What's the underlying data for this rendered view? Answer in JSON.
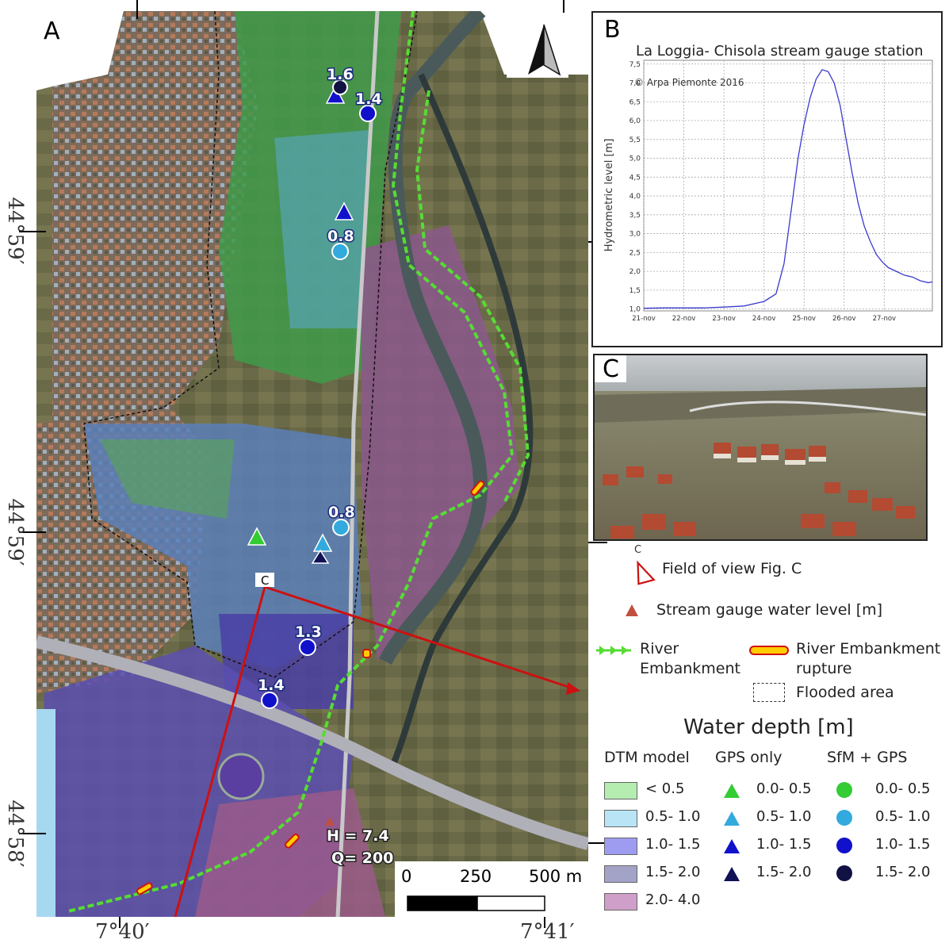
{
  "panel_a": {
    "letter": "A",
    "coords_left": [
      "44°59′",
      "44°59′",
      "44°58′"
    ],
    "coords_bottom": [
      "7°40′",
      "7°41′"
    ],
    "scale_labels": [
      "0",
      "250",
      "500 m"
    ],
    "point_labels": [
      "1.6",
      "1.4",
      "0.8",
      "0.8",
      "1.3",
      "1.4"
    ],
    "view_marker": "C",
    "gauge_h": "H = 7.4",
    "gauge_q": "Q= 200",
    "colors": {
      "river_embankment": "#55dd33",
      "rupture": "#ffcc00",
      "view_line": "#cc1111"
    }
  },
  "panel_b": {
    "letter": "B",
    "title": "La Loggia- Chisola stream gauge station",
    "copyright": "© Arpa Piemonte 2016",
    "ylabel": "Hydrometric level [m]"
  },
  "panel_c": {
    "letter": "C"
  },
  "chart_data": {
    "type": "line",
    "title": "La Loggia- Chisola stream gauge station",
    "ylabel": "Hydrometric level [m]",
    "xlabel": "",
    "x_ticks": [
      "21-nov",
      "22-nov",
      "23-nov",
      "24-nov",
      "25-nov",
      "26-nov",
      "27-nov"
    ],
    "y_ticks": [
      "1,0",
      "1,5",
      "2,0",
      "2,5",
      "3,0",
      "3,5",
      "4,0",
      "4,5",
      "5,0",
      "5,5",
      "6,0",
      "6,5",
      "7,0",
      "7,5"
    ],
    "ylim": [
      0.95,
      7.6
    ],
    "xlim": [
      0,
      7.2
    ],
    "grid": true,
    "series": [
      {
        "x": [
          0,
          0.5,
          1,
          1.5,
          2,
          2.5,
          3,
          3.3,
          3.5,
          3.7,
          3.85,
          4.0,
          4.15,
          4.3,
          4.45,
          4.6,
          4.75,
          4.9,
          5.05,
          5.2,
          5.35,
          5.5,
          5.65,
          5.8,
          5.95,
          6.1,
          6.3,
          6.5,
          6.7,
          6.9,
          7.1,
          7.2
        ],
        "y": [
          1.02,
          1.03,
          1.03,
          1.03,
          1.05,
          1.08,
          1.2,
          1.4,
          2.2,
          3.8,
          5.0,
          5.9,
          6.6,
          7.1,
          7.35,
          7.3,
          7.0,
          6.4,
          5.5,
          4.6,
          3.8,
          3.2,
          2.8,
          2.45,
          2.25,
          2.1,
          2.0,
          1.9,
          1.85,
          1.75,
          1.7,
          1.72
        ]
      }
    ]
  },
  "legend": {
    "field_of_view": "Field of view Fig. C",
    "field_marker": "C",
    "stream_gauge": "Stream gauge  water level [m]",
    "river_embankment": [
      "River",
      "Embankment"
    ],
    "rupture": [
      "River Embankment",
      "rupture"
    ],
    "flooded": "Flooded area",
    "water_depth_title": "Water depth [m]",
    "col_dtm": "DTM model",
    "col_gps": "GPS only",
    "col_sfm": "SfM + GPS",
    "dtm_rows": [
      {
        "label": "< 0.5",
        "color": "#b5ecb0"
      },
      {
        "label": "0.5- 1.0",
        "color": "#b8e4f6"
      },
      {
        "label": "1.0- 1.5",
        "color": "#9e9cf0"
      },
      {
        "label": "1.5- 2.0",
        "color": "#a3a2c7"
      },
      {
        "label": "2.0- 4.0",
        "color": "#cf9fc9"
      }
    ],
    "gps_rows": [
      {
        "label": "0.0- 0.5",
        "color": "#33cc33"
      },
      {
        "label": "0.5- 1.0",
        "color": "#33aadd"
      },
      {
        "label": "1.0- 1.5",
        "color": "#1111cc"
      },
      {
        "label": "1.5- 2.0",
        "color": "#111155"
      }
    ],
    "sfm_rows": [
      {
        "label": "0.0- 0.5",
        "color": "#33cc33"
      },
      {
        "label": "0.5- 1.0",
        "color": "#33aadd"
      },
      {
        "label": "1.0- 1.5",
        "color": "#1111cc"
      },
      {
        "label": "1.5- 2.0",
        "color": "#111144"
      }
    ]
  }
}
